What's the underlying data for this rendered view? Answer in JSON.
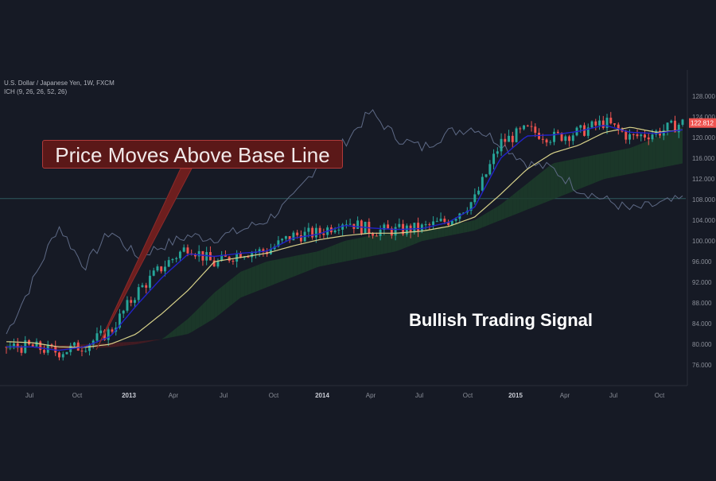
{
  "header": {
    "symbol": "U.S. Dollar / Japanese Yen, 1W, FXCM",
    "indicator": "ICH (9, 26, 26, 52, 26)"
  },
  "annotations": {
    "callout": "Price Moves Above Base Line",
    "signal": "Bullish Trading Signal"
  },
  "colors": {
    "background": "#161a25",
    "up_candle": "#26a69a",
    "down_candle": "#ef5350",
    "conversion_line": "#2323c8",
    "base_line": "#d8d28a",
    "lagging_span": "#5e6a86",
    "cloud_bullish": "#1c3d2a",
    "cloud_bearish": "#4a1c22",
    "price_tag": "#ef5350",
    "callout_bg": "#5b1818"
  },
  "chart_data": {
    "type": "candlestick",
    "title": "U.S. Dollar / Japanese Yen, 1W, FXCM",
    "ylim": [
      72,
      130
    ],
    "y_ticks": [
      "128.000",
      "124.000",
      "120.000",
      "116.000",
      "112.000",
      "108.000",
      "104.000",
      "100.000",
      "96.000",
      "92.000",
      "88.000",
      "84.000",
      "80.000",
      "76.000"
    ],
    "x_ticks": [
      "Jul",
      "Oct",
      "2013",
      "Apr",
      "Jul",
      "Oct",
      "2014",
      "Apr",
      "Jul",
      "Oct",
      "2015",
      "Apr",
      "Jul",
      "Oct"
    ],
    "last_price": "122.812",
    "horizontal_level": 108.2,
    "close_anchors": [
      79.5,
      79.5,
      78.5,
      79.8,
      82.5,
      90,
      95,
      99,
      95.5,
      97.8,
      98,
      101,
      101.5,
      104,
      102,
      102,
      102.5,
      104,
      108,
      119,
      121.5,
      120,
      121,
      123,
      120,
      121,
      122.812
    ],
    "conversion_anchors": [
      79.5,
      79.5,
      78.8,
      79.5,
      81.5,
      87.5,
      93,
      97.5,
      97,
      97.6,
      98,
      100.5,
      101.3,
      103,
      102.5,
      102.2,
      102.4,
      103.6,
      106.5,
      116,
      120.3,
      120.5,
      121.2,
      122.4,
      121,
      120.8,
      121.5
    ],
    "base_anchors": [
      80.5,
      80.3,
      79.5,
      79.4,
      80,
      82,
      86,
      90.5,
      96,
      96.8,
      97.6,
      99,
      100.2,
      101,
      101.5,
      101.5,
      101.9,
      102.8,
      104.6,
      109,
      113.8,
      117,
      118.5,
      121,
      122,
      121,
      121.5
    ],
    "lagging_span_anchors": [
      82,
      92,
      103,
      95,
      102,
      97,
      99,
      101,
      100.5,
      102,
      104,
      108,
      115,
      119,
      125,
      120,
      118,
      121,
      122,
      119,
      115,
      114,
      110,
      108,
      106,
      107,
      108
    ],
    "span_a_anchors": [
      80,
      79.5,
      79,
      79.2,
      79.4,
      80,
      81,
      85,
      90,
      94,
      96,
      97,
      98,
      100,
      101,
      101.5,
      102,
      103,
      104,
      107,
      111,
      115,
      116,
      117,
      118,
      120,
      122
    ],
    "span_b_anchors": [
      79,
      79.5,
      79.8,
      80,
      80.3,
      80.5,
      81,
      82,
      85,
      89,
      91,
      93,
      95,
      96,
      97,
      98,
      100,
      101,
      102,
      104,
      106,
      108,
      110,
      112,
      113,
      114,
      115
    ]
  }
}
